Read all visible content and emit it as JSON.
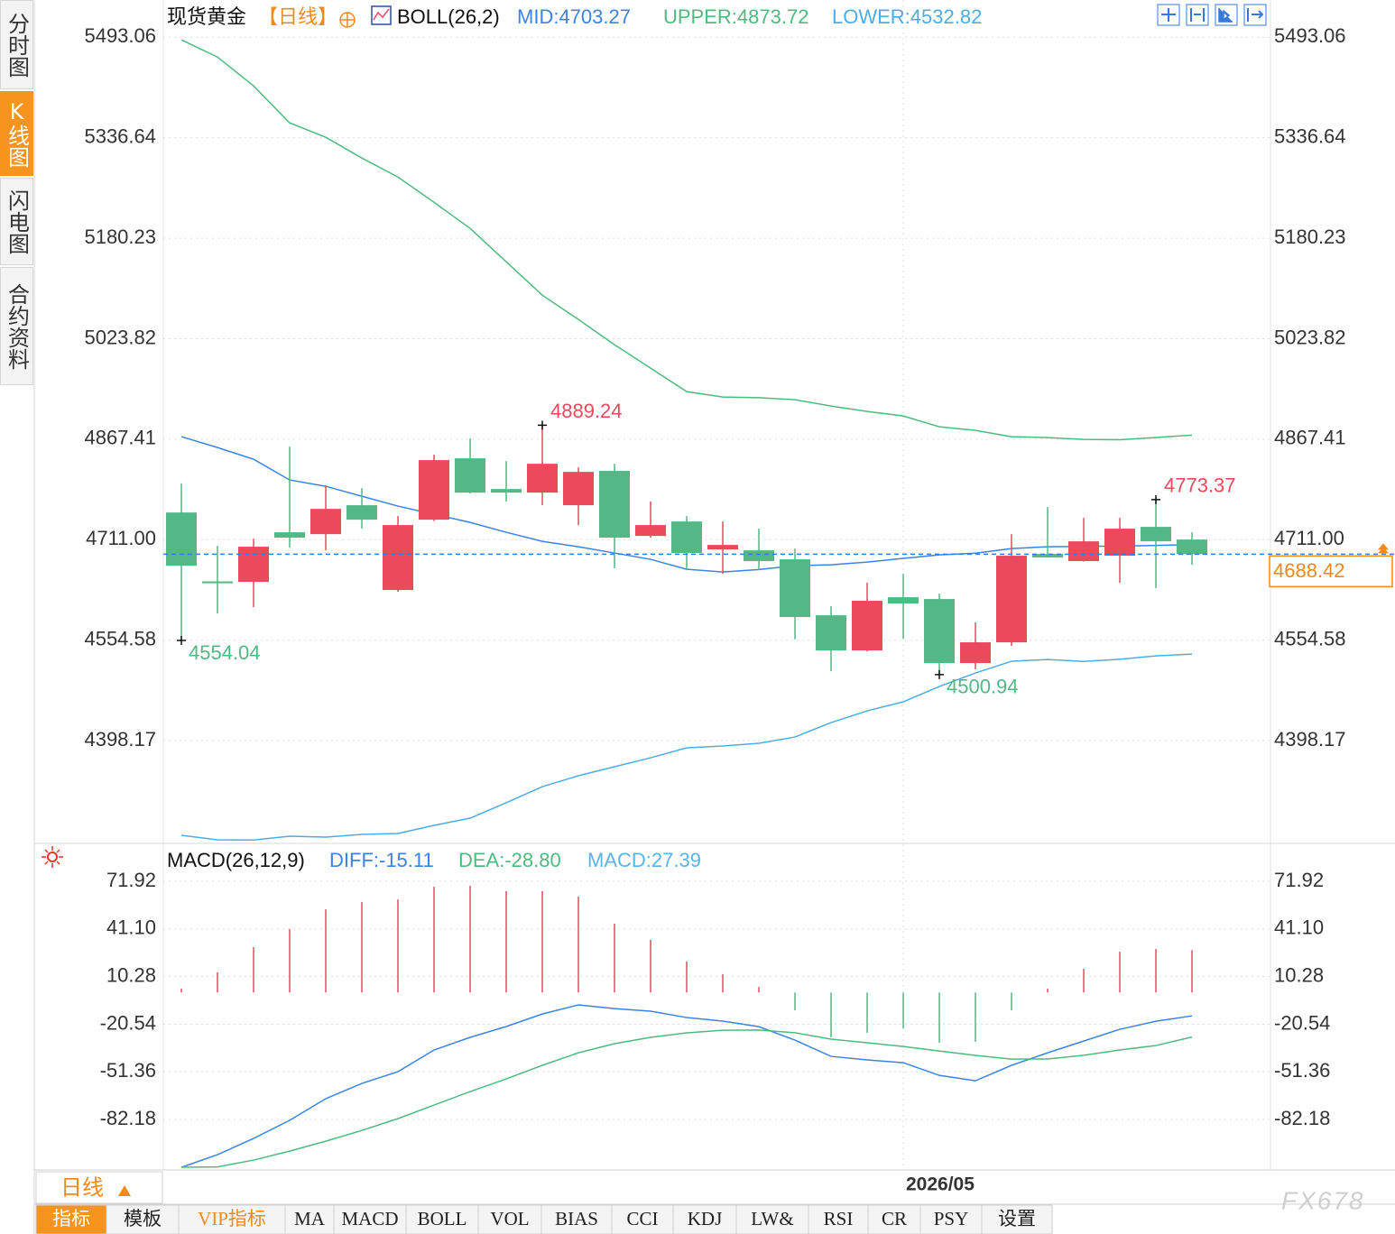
{
  "sidebar": {
    "tabs": [
      "分时图",
      "K线图",
      "闪电图",
      "合约资料"
    ]
  },
  "chart_data": [
    {
      "type": "candlestick",
      "title": "现货黄金",
      "period": "【日线】",
      "indicator": "BOLL(26,2)",
      "categories": [
        null,
        null,
        null,
        null,
        null,
        null,
        null,
        null,
        null,
        null,
        null,
        null,
        null,
        null,
        null,
        null,
        null,
        null,
        null,
        null,
        "2026/05",
        null,
        null,
        null,
        null,
        null,
        null,
        null,
        null
      ],
      "open": [
        4753.3,
        4646.0,
        4645.3,
        4722.5,
        4719.6,
        4764.6,
        4632.6,
        4742.1,
        4837.6,
        4789.8,
        4784.2,
        4764.6,
        4818.0,
        4716.8,
        4739.3,
        4695.8,
        4694.4,
        4680.4,
        4593.3,
        4538.6,
        4621.4,
        4618.6,
        4518.9,
        4551.2,
        4688.8,
        4677.6,
        4686.0,
        4730.9,
        4711.2
      ],
      "high": [
        4798.3,
        4701.4,
        4712.6,
        4855.8,
        4795.4,
        4791.2,
        4747.7,
        4843.2,
        4868.5,
        4833.4,
        4889.24,
        4823.5,
        4829.1,
        4770.2,
        4747.7,
        4739.3,
        4728.1,
        4697.2,
        4607.4,
        4643.9,
        4657.9,
        4627.0,
        4582.1,
        4719.6,
        4761.8,
        4744.9,
        4744.9,
        4773.37,
        4722.5
      ],
      "low": [
        4554.04,
        4596.1,
        4606.0,
        4698.6,
        4694.4,
        4728.1,
        4630.0,
        4740.0,
        4783.0,
        4770.2,
        4764.6,
        4733.7,
        4666.3,
        4714.0,
        4663.5,
        4657.9,
        4663.5,
        4556.0,
        4506.3,
        4537.0,
        4556.8,
        4500.94,
        4509.1,
        4545.6,
        4683.0,
        4677.0,
        4643.9,
        4635.4,
        4671.9
      ],
      "close": [
        4670.5,
        4644.0,
        4700.0,
        4714.0,
        4758.9,
        4742.1,
        4733.7,
        4834.8,
        4784.2,
        4784.2,
        4829.1,
        4816.5,
        4714.0,
        4733.7,
        4690.2,
        4702.8,
        4677.6,
        4590.5,
        4538.6,
        4615.8,
        4611.6,
        4518.9,
        4551.2,
        4686.0,
        4683.2,
        4708.4,
        4728.1,
        4708.4,
        4688.42
      ],
      "up_color": "#eb4a5d",
      "down_color": "#52b886",
      "high_marks": [
        10,
        27
      ],
      "low_marks": [
        0,
        21
      ],
      "series": [
        {
          "name": "MID:4703.27",
          "color": "#3b83e6",
          "values": [
            4871.3,
            4854.4,
            4836.2,
            4803.9,
            4794.1,
            4778.6,
            4763.2,
            4750.5,
            4737.9,
            4722.5,
            4708.4,
            4700.0,
            4690.2,
            4680.4,
            4664.9,
            4660.7,
            4664.5,
            4670.5,
            4671.9,
            4676.1,
            4681.8,
            4687.4,
            4690.0,
            4697.2,
            4700.0,
            4700.5,
            4701.0,
            4702.0,
            4703.27
          ]
        },
        {
          "name": "UPPER:4873.72",
          "color": "#4dbb7e",
          "values": [
            5488.9,
            5462.2,
            5417.3,
            5359.7,
            5337.3,
            5305.0,
            5275.5,
            5236.2,
            5195.5,
            5143.6,
            5091.6,
            5053.7,
            5014.4,
            4977.9,
            4941.4,
            4933.0,
            4932.0,
            4928.8,
            4919.0,
            4910.6,
            4903.5,
            4886.7,
            4881.1,
            4871.3,
            4869.9,
            4867.0,
            4866.5,
            4870.0,
            4873.72
          ]
        },
        {
          "name": "LOWER:4532.82",
          "color": "#4aaee6",
          "values": [
            4250.8,
            4243.8,
            4243.5,
            4249.4,
            4248.0,
            4252.2,
            4253.6,
            4266.3,
            4277.5,
            4301.4,
            4326.6,
            4343.5,
            4357.5,
            4371.5,
            4387.0,
            4389.8,
            4394.0,
            4403.8,
            4426.3,
            4444.5,
            4458.6,
            4482.4,
            4503.5,
            4521.7,
            4524.5,
            4521.5,
            4524.8,
            4530.1,
            4532.82
          ]
        }
      ],
      "ylim": [
        4241,
        5551
      ],
      "yticks": [
        5493.06,
        5336.64,
        5180.23,
        5023.82,
        4867.41,
        {
          "value": 4711,
          "label": "4711.00"
        },
        4554.58,
        4398.17
      ],
      "grid": true
    },
    {
      "type": "macd",
      "title": "MACD(26,12,9)",
      "series": [
        {
          "name": "DIFF:-15.11",
          "type": "line",
          "color": "#3b83e6",
          "values": [
            -113.1,
            -104.9,
            -94.4,
            -82.7,
            -68.7,
            -58.8,
            -51.2,
            -37.2,
            -29.0,
            -22.0,
            -13.9,
            -8.0,
            -10.4,
            -12.1,
            -16.2,
            -18.5,
            -22.1,
            -30.8,
            -41.3,
            -43.6,
            -45.4,
            -53.6,
            -57.1,
            -47.1,
            -39.0,
            -31.4,
            -23.8,
            -18.6,
            -15.11
          ]
        },
        {
          "name": "DEA:-28.80",
          "type": "line",
          "color": "#4dbb7e",
          "values": [
            -113.0,
            -112.8,
            -108.4,
            -102.6,
            -96.2,
            -89.2,
            -81.6,
            -72.8,
            -64.1,
            -55.9,
            -47.1,
            -39.0,
            -33.1,
            -29.0,
            -26.1,
            -24.4,
            -24.3,
            -26.0,
            -30.2,
            -32.5,
            -34.9,
            -37.8,
            -40.7,
            -43.1,
            -43.0,
            -40.6,
            -37.2,
            -34.3,
            -28.8
          ]
        },
        {
          "name": "MACD:27.39",
          "type": "bar",
          "color": "#5ab4e8",
          "up_color": "#eb4a5d",
          "down_color": "#52b886",
          "values": [
            2.5,
            13.0,
            29.3,
            41.0,
            53.8,
            58.5,
            60.2,
            68.4,
            69.0,
            65.5,
            65.5,
            62.0,
            44.5,
            34.0,
            20.0,
            11.8,
            3.6,
            -11.5,
            -29.0,
            -26.1,
            -23.2,
            -32.5,
            -31.9,
            -11.5,
            2.5,
            15.3,
            26.4,
            28.1,
            27.39
          ]
        }
      ],
      "ylim": [
        -114.2,
        94.7
      ],
      "yticks": [
        71.92,
        {
          "value": 41.1,
          "label": "41.10"
        },
        10.28,
        -20.54,
        -51.36,
        -82.18
      ],
      "grid": true
    }
  ],
  "period_selector": "日线",
  "tabs": [
    "指标",
    "模板",
    "VIP指标",
    "MA",
    "MACD",
    "BOLL",
    "VOL",
    "BIAS",
    "CCI",
    "KDJ",
    "LW&",
    "RSI",
    "CR",
    "PSY",
    "设置"
  ],
  "watermark": "FX678"
}
